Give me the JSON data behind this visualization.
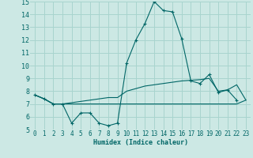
{
  "xlabel": "Humidex (Indice chaleur)",
  "background_color": "#cce8e4",
  "grid_color": "#a8d4ce",
  "line_color": "#006666",
  "xlim": [
    -0.5,
    23.5
  ],
  "ylim": [
    5,
    15
  ],
  "xticks": [
    0,
    1,
    2,
    3,
    4,
    5,
    6,
    7,
    8,
    9,
    10,
    11,
    12,
    13,
    14,
    15,
    16,
    17,
    18,
    19,
    20,
    21,
    22,
    23
  ],
  "yticks": [
    5,
    6,
    7,
    8,
    9,
    10,
    11,
    12,
    13,
    14,
    15
  ],
  "series": [
    {
      "x": [
        0,
        1,
        2,
        3,
        4,
        5,
        6,
        7,
        8,
        9,
        10,
        11,
        12,
        13,
        14,
        15,
        16,
        17,
        18,
        19,
        20,
        21,
        22
      ],
      "y": [
        7.7,
        7.4,
        7.0,
        7.0,
        5.5,
        6.3,
        6.3,
        5.5,
        5.3,
        5.5,
        10.2,
        12.0,
        13.3,
        15.0,
        14.3,
        14.2,
        12.1,
        8.8,
        8.6,
        9.3,
        7.9,
        8.1,
        7.3
      ],
      "marker": true
    },
    {
      "x": [
        0,
        1,
        2,
        3,
        4,
        5,
        6,
        7,
        8,
        9,
        10,
        11,
        12,
        13,
        14,
        15,
        16,
        17,
        18,
        19,
        20,
        21,
        22,
        23
      ],
      "y": [
        7.7,
        7.4,
        7.0,
        7.0,
        7.0,
        7.0,
        7.0,
        7.0,
        7.0,
        7.0,
        7.0,
        7.0,
        7.0,
        7.0,
        7.0,
        7.0,
        7.0,
        7.0,
        7.0,
        7.0,
        7.0,
        7.0,
        7.0,
        7.3
      ],
      "marker": false
    },
    {
      "x": [
        0,
        1,
        2,
        3,
        4,
        5,
        6,
        7,
        8,
        9,
        10,
        11,
        12,
        13,
        14,
        15,
        16,
        17,
        18,
        19,
        20,
        21,
        22,
        23
      ],
      "y": [
        7.7,
        7.4,
        7.0,
        7.0,
        7.1,
        7.2,
        7.3,
        7.4,
        7.5,
        7.5,
        8.0,
        8.2,
        8.4,
        8.5,
        8.6,
        8.7,
        8.8,
        8.85,
        8.9,
        9.0,
        8.0,
        8.1,
        8.5,
        7.3
      ],
      "marker": false
    }
  ]
}
